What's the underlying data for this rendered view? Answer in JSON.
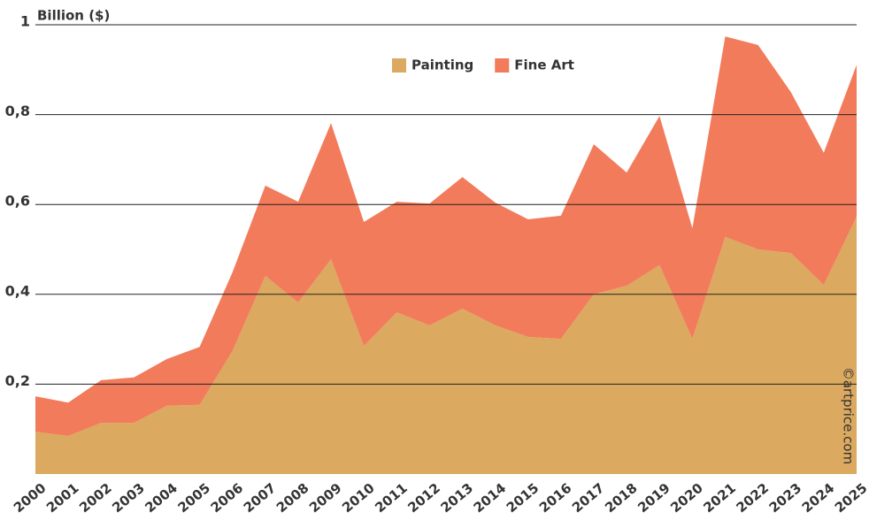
{
  "chart_data": {
    "type": "stacked-area",
    "y_label": "Billion ($)",
    "watermark": "©artprice.com",
    "categories": [
      "2000",
      "2001",
      "2002",
      "2003",
      "2004",
      "2005",
      "2006",
      "2007",
      "2008",
      "2009",
      "2010",
      "2011",
      "2012",
      "2013",
      "2014",
      "2015",
      "2016",
      "2017",
      "2018",
      "2019",
      "2020",
      "2021",
      "2022",
      "2023",
      "2024",
      "2025"
    ],
    "series": [
      {
        "name": "Painting",
        "color": "#dba95f",
        "values": [
          0.094,
          0.085,
          0.114,
          0.114,
          0.152,
          0.154,
          0.274,
          0.441,
          0.382,
          0.478,
          0.285,
          0.36,
          0.331,
          0.368,
          0.331,
          0.305,
          0.301,
          0.4,
          0.419,
          0.465,
          0.301,
          0.528,
          0.5,
          0.492,
          0.421,
          0.573
        ]
      },
      {
        "name": "Fine Art",
        "color": "#f27b5b",
        "values": [
          0.079,
          0.074,
          0.095,
          0.101,
          0.104,
          0.129,
          0.175,
          0.201,
          0.224,
          0.303,
          0.276,
          0.246,
          0.271,
          0.293,
          0.273,
          0.262,
          0.274,
          0.334,
          0.252,
          0.332,
          0.246,
          0.446,
          0.455,
          0.358,
          0.294,
          0.338
        ]
      }
    ],
    "ylim": [
      0,
      1.0
    ],
    "yticks": [
      {
        "value": 0.2,
        "label": "0,2"
      },
      {
        "value": 0.4,
        "label": "0,4"
      },
      {
        "value": 0.6,
        "label": "0,6"
      },
      {
        "value": 0.8,
        "label": "0,8"
      },
      1
    ],
    "grid": true,
    "legend": "top"
  }
}
